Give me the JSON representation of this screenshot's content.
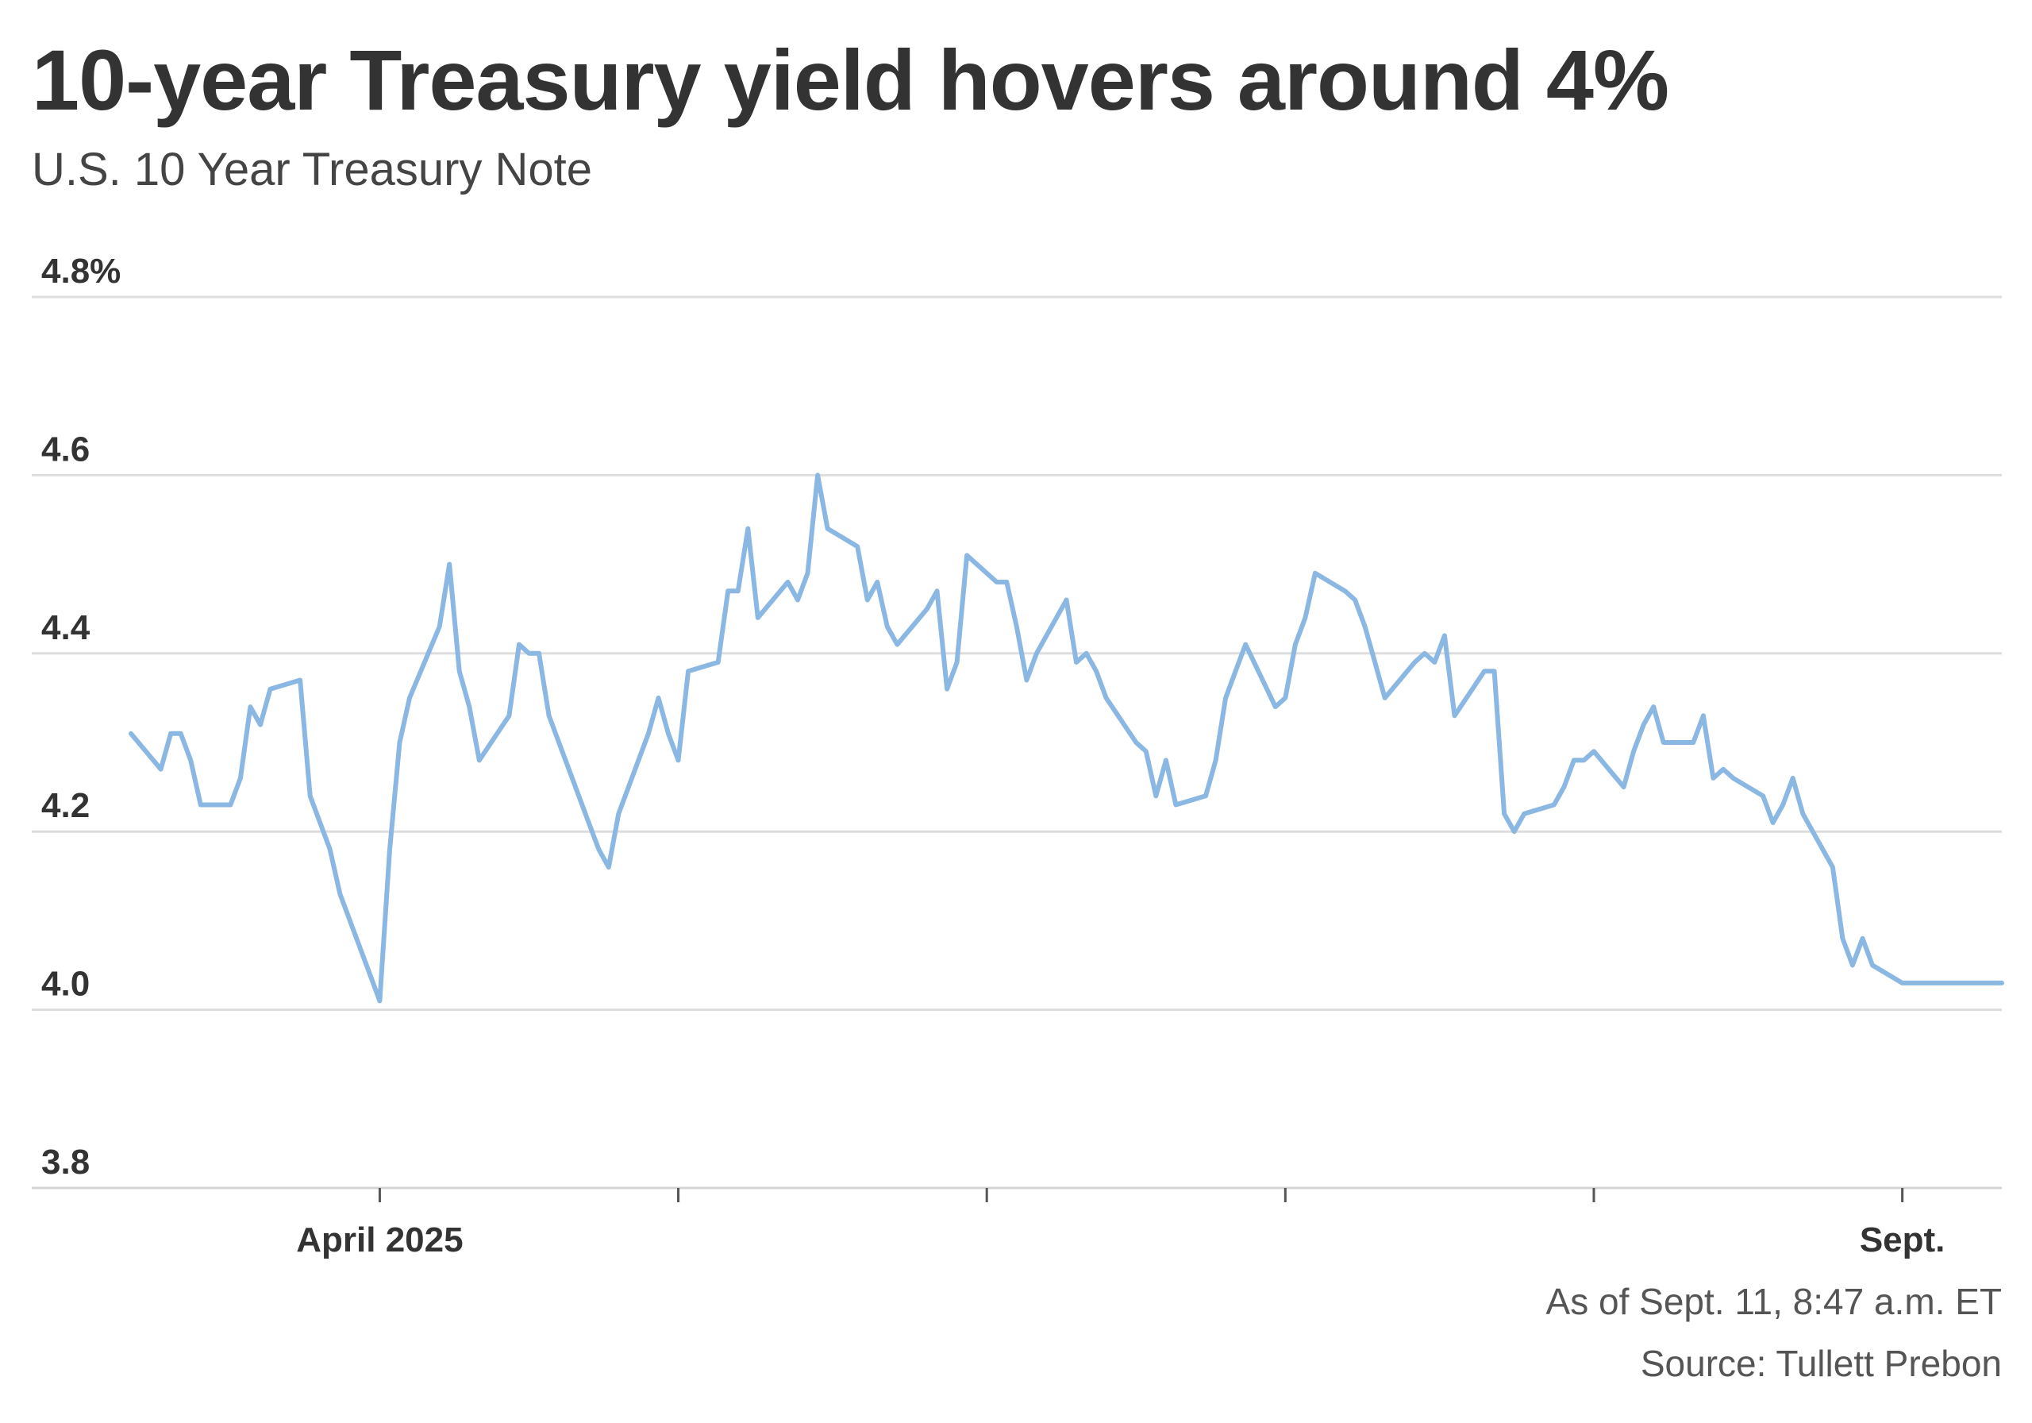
{
  "title": "10-year Treasury yield hovers around 4%",
  "subtitle": "U.S. 10 Year Treasury Note",
  "footer": {
    "as_of": "As of Sept. 11, 8:47 a.m. ET",
    "source": "Source: Tullett Prebon"
  },
  "colors": {
    "line": "#8bb8e3",
    "grid": "#dddddd",
    "axis": "#d4d4d4",
    "text": "#333333"
  },
  "chart_data": {
    "type": "line",
    "title": "10-year Treasury yield hovers around 4%",
    "subtitle": "U.S. 10 Year Treasury Note",
    "ylim": [
      3.8,
      4.8
    ],
    "yticks": [
      {
        "value": 3.8,
        "label": "3.8"
      },
      {
        "value": 4.0,
        "label": "4.0"
      },
      {
        "value": 4.2,
        "label": "4.2"
      },
      {
        "value": 4.4,
        "label": "4.4"
      },
      {
        "value": 4.6,
        "label": "4.6"
      },
      {
        "value": 4.8,
        "label": "4.8%"
      }
    ],
    "xlim": [
      "2025-03-07",
      "2025-09-11"
    ],
    "xticks": [
      {
        "date": "2025-04-01",
        "label": "April 2025"
      },
      {
        "date": "2025-05-01",
        "label": ""
      },
      {
        "date": "2025-06-01",
        "label": ""
      },
      {
        "date": "2025-07-01",
        "label": ""
      },
      {
        "date": "2025-08-01",
        "label": ""
      },
      {
        "date": "2025-09-01",
        "label": "Sept."
      }
    ],
    "grid": true,
    "series": [
      {
        "values": [
          [
            "2025-03-07",
            4.31
          ],
          [
            "2025-03-10",
            4.27
          ],
          [
            "2025-03-11",
            4.31
          ],
          [
            "2025-03-12",
            4.31
          ],
          [
            "2025-03-13",
            4.28
          ],
          [
            "2025-03-14",
            4.23
          ],
          [
            "2025-03-17",
            4.23
          ],
          [
            "2025-03-18",
            4.26
          ],
          [
            "2025-03-19",
            4.34
          ],
          [
            "2025-03-20",
            4.32
          ],
          [
            "2025-03-21",
            4.36
          ],
          [
            "2025-03-24",
            4.37
          ],
          [
            "2025-03-25",
            4.24
          ],
          [
            "2025-03-26",
            4.21
          ],
          [
            "2025-03-27",
            4.18
          ],
          [
            "2025-03-28",
            4.13
          ],
          [
            "2025-03-31",
            4.04
          ],
          [
            "2025-04-01",
            4.01
          ],
          [
            "2025-04-02",
            4.18
          ],
          [
            "2025-04-03",
            4.3
          ],
          [
            "2025-04-04",
            4.35
          ],
          [
            "2025-04-07",
            4.43
          ],
          [
            "2025-04-08",
            4.5
          ],
          [
            "2025-04-09",
            4.38
          ],
          [
            "2025-04-10",
            4.34
          ],
          [
            "2025-04-11",
            4.28
          ],
          [
            "2025-04-14",
            4.33
          ],
          [
            "2025-04-15",
            4.41
          ],
          [
            "2025-04-16",
            4.4
          ],
          [
            "2025-04-17",
            4.4
          ],
          [
            "2025-04-18",
            4.33
          ],
          [
            "2025-04-21",
            4.24
          ],
          [
            "2025-04-22",
            4.21
          ],
          [
            "2025-04-23",
            4.18
          ],
          [
            "2025-04-24",
            4.16
          ],
          [
            "2025-04-25",
            4.22
          ],
          [
            "2025-04-28",
            4.31
          ],
          [
            "2025-04-29",
            4.35
          ],
          [
            "2025-04-30",
            4.31
          ],
          [
            "2025-05-01",
            4.28
          ],
          [
            "2025-05-02",
            4.38
          ],
          [
            "2025-05-05",
            4.39
          ],
          [
            "2025-05-06",
            4.47
          ],
          [
            "2025-05-07",
            4.47
          ],
          [
            "2025-05-08",
            4.54
          ],
          [
            "2025-05-09",
            4.44
          ],
          [
            "2025-05-12",
            4.48
          ],
          [
            "2025-05-13",
            4.46
          ],
          [
            "2025-05-14",
            4.49
          ],
          [
            "2025-05-15",
            4.6
          ],
          [
            "2025-05-16",
            4.54
          ],
          [
            "2025-05-19",
            4.52
          ],
          [
            "2025-05-20",
            4.46
          ],
          [
            "2025-05-21",
            4.48
          ],
          [
            "2025-05-22",
            4.43
          ],
          [
            "2025-05-23",
            4.41
          ],
          [
            "2025-05-26",
            4.45
          ],
          [
            "2025-05-27",
            4.47
          ],
          [
            "2025-05-28",
            4.36
          ],
          [
            "2025-05-29",
            4.39
          ],
          [
            "2025-05-30",
            4.51
          ],
          [
            "2025-06-02",
            4.48
          ],
          [
            "2025-06-03",
            4.48
          ],
          [
            "2025-06-04",
            4.43
          ],
          [
            "2025-06-05",
            4.37
          ],
          [
            "2025-06-06",
            4.4
          ],
          [
            "2025-06-09",
            4.46
          ],
          [
            "2025-06-10",
            4.39
          ],
          [
            "2025-06-11",
            4.4
          ],
          [
            "2025-06-12",
            4.38
          ],
          [
            "2025-06-13",
            4.35
          ],
          [
            "2025-06-16",
            4.3
          ],
          [
            "2025-06-17",
            4.29
          ],
          [
            "2025-06-18",
            4.24
          ],
          [
            "2025-06-19",
            4.28
          ],
          [
            "2025-06-20",
            4.23
          ],
          [
            "2025-06-23",
            4.24
          ],
          [
            "2025-06-24",
            4.28
          ],
          [
            "2025-06-25",
            4.35
          ],
          [
            "2025-06-26",
            4.38
          ],
          [
            "2025-06-27",
            4.41
          ],
          [
            "2025-06-30",
            4.34
          ],
          [
            "2025-07-01",
            4.35
          ],
          [
            "2025-07-02",
            4.41
          ],
          [
            "2025-07-03",
            4.44
          ],
          [
            "2025-07-04",
            4.49
          ],
          [
            "2025-07-07",
            4.47
          ],
          [
            "2025-07-08",
            4.46
          ],
          [
            "2025-07-09",
            4.43
          ],
          [
            "2025-07-10",
            4.39
          ],
          [
            "2025-07-11",
            4.35
          ],
          [
            "2025-07-14",
            4.39
          ],
          [
            "2025-07-15",
            4.4
          ],
          [
            "2025-07-16",
            4.39
          ],
          [
            "2025-07-17",
            4.42
          ],
          [
            "2025-07-18",
            4.33
          ],
          [
            "2025-07-21",
            4.38
          ],
          [
            "2025-07-22",
            4.38
          ],
          [
            "2025-07-23",
            4.22
          ],
          [
            "2025-07-24",
            4.2
          ],
          [
            "2025-07-25",
            4.22
          ],
          [
            "2025-07-28",
            4.23
          ],
          [
            "2025-07-29",
            4.25
          ],
          [
            "2025-07-30",
            4.28
          ],
          [
            "2025-07-31",
            4.28
          ],
          [
            "2025-08-01",
            4.29
          ],
          [
            "2025-08-04",
            4.25
          ],
          [
            "2025-08-05",
            4.29
          ],
          [
            "2025-08-06",
            4.32
          ],
          [
            "2025-08-07",
            4.34
          ],
          [
            "2025-08-08",
            4.3
          ],
          [
            "2025-08-11",
            4.3
          ],
          [
            "2025-08-12",
            4.33
          ],
          [
            "2025-08-13",
            4.26
          ],
          [
            "2025-08-14",
            4.27
          ],
          [
            "2025-08-15",
            4.26
          ],
          [
            "2025-08-18",
            4.24
          ],
          [
            "2025-08-19",
            4.21
          ],
          [
            "2025-08-20",
            4.23
          ],
          [
            "2025-08-21",
            4.26
          ],
          [
            "2025-08-22",
            4.22
          ],
          [
            "2025-08-25",
            4.16
          ],
          [
            "2025-08-26",
            4.08
          ],
          [
            "2025-08-27",
            4.05
          ],
          [
            "2025-08-28",
            4.08
          ],
          [
            "2025-08-29",
            4.05
          ],
          [
            "2025-09-01",
            4.03
          ],
          [
            "2025-09-11",
            4.03
          ]
        ]
      }
    ]
  }
}
